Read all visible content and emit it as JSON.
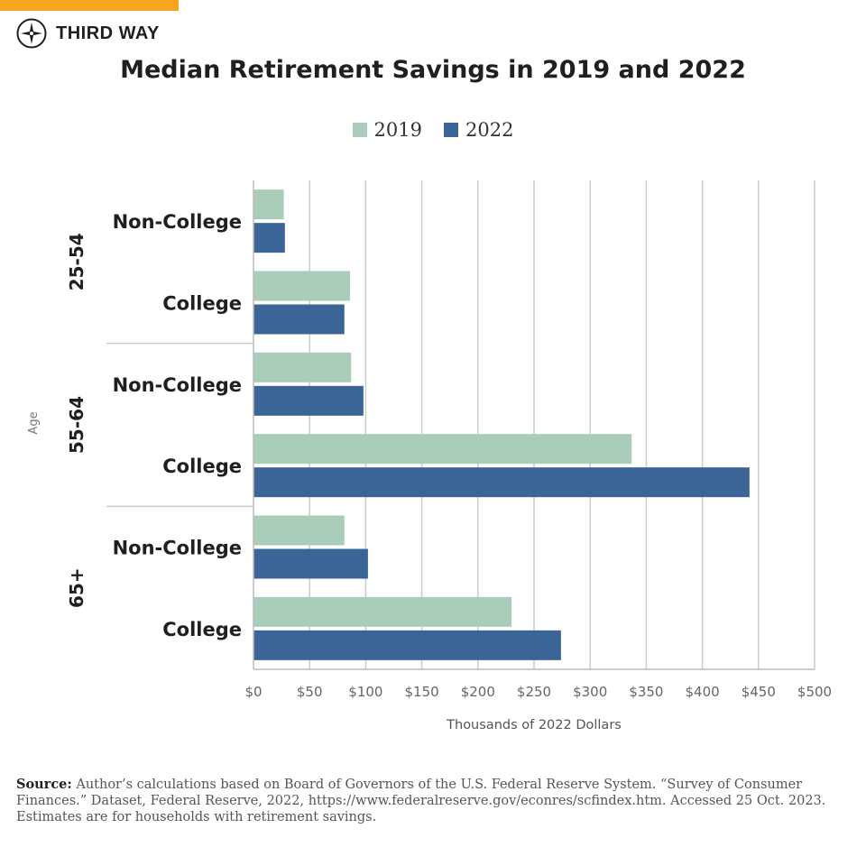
{
  "brand": {
    "name": "THIRD WAY",
    "icon": "compass-icon",
    "accent_color": "#f7a51f"
  },
  "colors": {
    "series_2019": "#a9cdb8",
    "series_2022": "#3b6596",
    "grid": "#cccccc",
    "tick_text": "#666666"
  },
  "chart_data": {
    "type": "bar",
    "orientation": "horizontal",
    "title": "Median Retirement Savings in 2019 and 2022",
    "xlabel": "Thousands of 2022 Dollars",
    "ylabel": "Age",
    "xlim": [
      0,
      500
    ],
    "x_ticks": [
      0,
      50,
      100,
      150,
      200,
      250,
      300,
      350,
      400,
      450,
      500
    ],
    "x_tick_labels": [
      "$0",
      "$50",
      "$100",
      "$150",
      "$200",
      "$250",
      "$300",
      "$350",
      "$400",
      "$450",
      "$500"
    ],
    "legend_position": "top-center",
    "grid": true,
    "groups": [
      {
        "label": "25-54",
        "categories": [
          "Non-College",
          "College"
        ]
      },
      {
        "label": "55-64",
        "categories": [
          "Non-College",
          "College"
        ]
      },
      {
        "label": "65+",
        "categories": [
          "Non-College",
          "College"
        ]
      }
    ],
    "categories": [
      "Non-College",
      "College",
      "Non-College",
      "College",
      "Non-College",
      "College"
    ],
    "series": [
      {
        "name": "2019",
        "values": [
          27,
          86,
          87,
          337,
          81,
          230
        ]
      },
      {
        "name": "2022",
        "values": [
          28,
          81,
          98,
          442,
          102,
          274
        ]
      }
    ]
  },
  "source": {
    "label": "Source:",
    "text": "Author’s calculations based on Board of Governors of the U.S. Federal Reserve System. “Survey of Consumer Finances.” Dataset, Federal Reserve, 2022, https://www.federalreserve.gov/econres/scfindex.htm. Accessed 25 Oct. 2023. Estimates are for households with retirement savings."
  }
}
